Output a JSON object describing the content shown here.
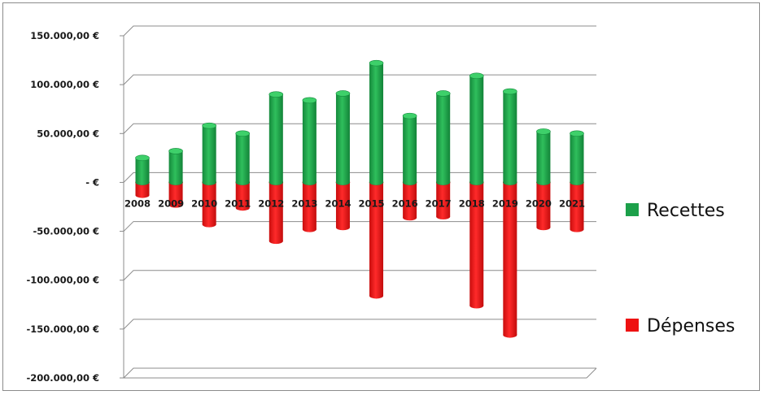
{
  "chart_data": {
    "type": "bar",
    "categories": [
      "2008",
      "2009",
      "2010",
      "2011",
      "2012",
      "2013",
      "2014",
      "2015",
      "2016",
      "2017",
      "2018",
      "2019",
      "2020",
      "2021"
    ],
    "series": [
      {
        "name": "Recettes",
        "color": "#1ca04a",
        "values": [
          25000,
          32000,
          58000,
          50000,
          90000,
          84000,
          91000,
          122000,
          68000,
          91000,
          109000,
          93000,
          52000,
          50000
        ]
      },
      {
        "name": "Dépenses",
        "color": "#ee1111",
        "values": [
          -13000,
          -23000,
          -43000,
          -26000,
          -60000,
          -48000,
          -46000,
          -116000,
          -36000,
          -35000,
          -126000,
          -156000,
          -46000,
          -48000
        ]
      }
    ],
    "ylim": [
      -200000,
      150000
    ],
    "yticks": [
      {
        "value": 150000,
        "label": "150.000,00 €"
      },
      {
        "value": 100000,
        "label": "100.000,00 €"
      },
      {
        "value": 50000,
        "label": "50.000,00 €"
      },
      {
        "value": 0,
        "label": "-  €"
      },
      {
        "value": -50000,
        "label": "-50.000,00 €"
      },
      {
        "value": -100000,
        "label": "-100.000,00 €"
      },
      {
        "value": -150000,
        "label": "-150.000,00 €"
      },
      {
        "value": -200000,
        "label": "-200.000,00 €"
      }
    ],
    "grid": true,
    "legend_position": "right",
    "title": "",
    "xlabel": "",
    "ylabel": ""
  }
}
